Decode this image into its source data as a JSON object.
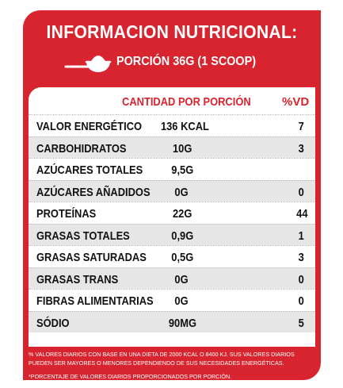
{
  "label": {
    "title": "INFORMACION NUTRICIONAL:",
    "portion_icon": "scoop-bowl-icon",
    "portion_text": "PORCIÓN 36G (1 SCOOP)",
    "header": {
      "quantity": "CANTIDAD POR PORCIÓN",
      "vd": "%VD"
    },
    "rows": [
      {
        "name": "VALOR ENERGÉTICO",
        "quantity": "136 KCAL",
        "vd": "7"
      },
      {
        "name": "CARBOHIDRATOS",
        "quantity": "10G",
        "vd": "3"
      },
      {
        "name": "AZÚCARES TOTALES",
        "quantity": "9,5G",
        "vd": ""
      },
      {
        "name": "AZÚCARES AÑADIDOS",
        "quantity": "0G",
        "vd": "0"
      },
      {
        "name": "PROTEÍNAS",
        "quantity": "22G",
        "vd": "44"
      },
      {
        "name": "GRASAS TOTALES",
        "quantity": "0,9G",
        "vd": "1"
      },
      {
        "name": "GRASAS SATURADAS",
        "quantity": "0,5G",
        "vd": "3"
      },
      {
        "name": "GRASAS TRANS",
        "quantity": "0G",
        "vd": "0"
      },
      {
        "name": "FIBRAS ALIMENTARIAS",
        "quantity": "0G",
        "vd": "0"
      },
      {
        "name": "SÓDIO",
        "quantity": "90MG",
        "vd": "5"
      }
    ],
    "footnote_1": "% VALORES DIARIOS CON BASE EN UNA DIETA DE 2000 KCAL O 8400 KJ. SUS VALORES DIARIOS PUEDEN SER MAYORES O MENORES DEPENDIENDO DE SUS NECESIDADES ENERGÉTICAS.",
    "footnote_2": "*PORCENTAJE DE VALORES DIARIOS PROPORCIONADOS POR PORCIÓN.",
    "colors": {
      "brand_red": "#d8242e",
      "row_shade": "#e6e6e6",
      "text_dark": "#111111"
    }
  }
}
